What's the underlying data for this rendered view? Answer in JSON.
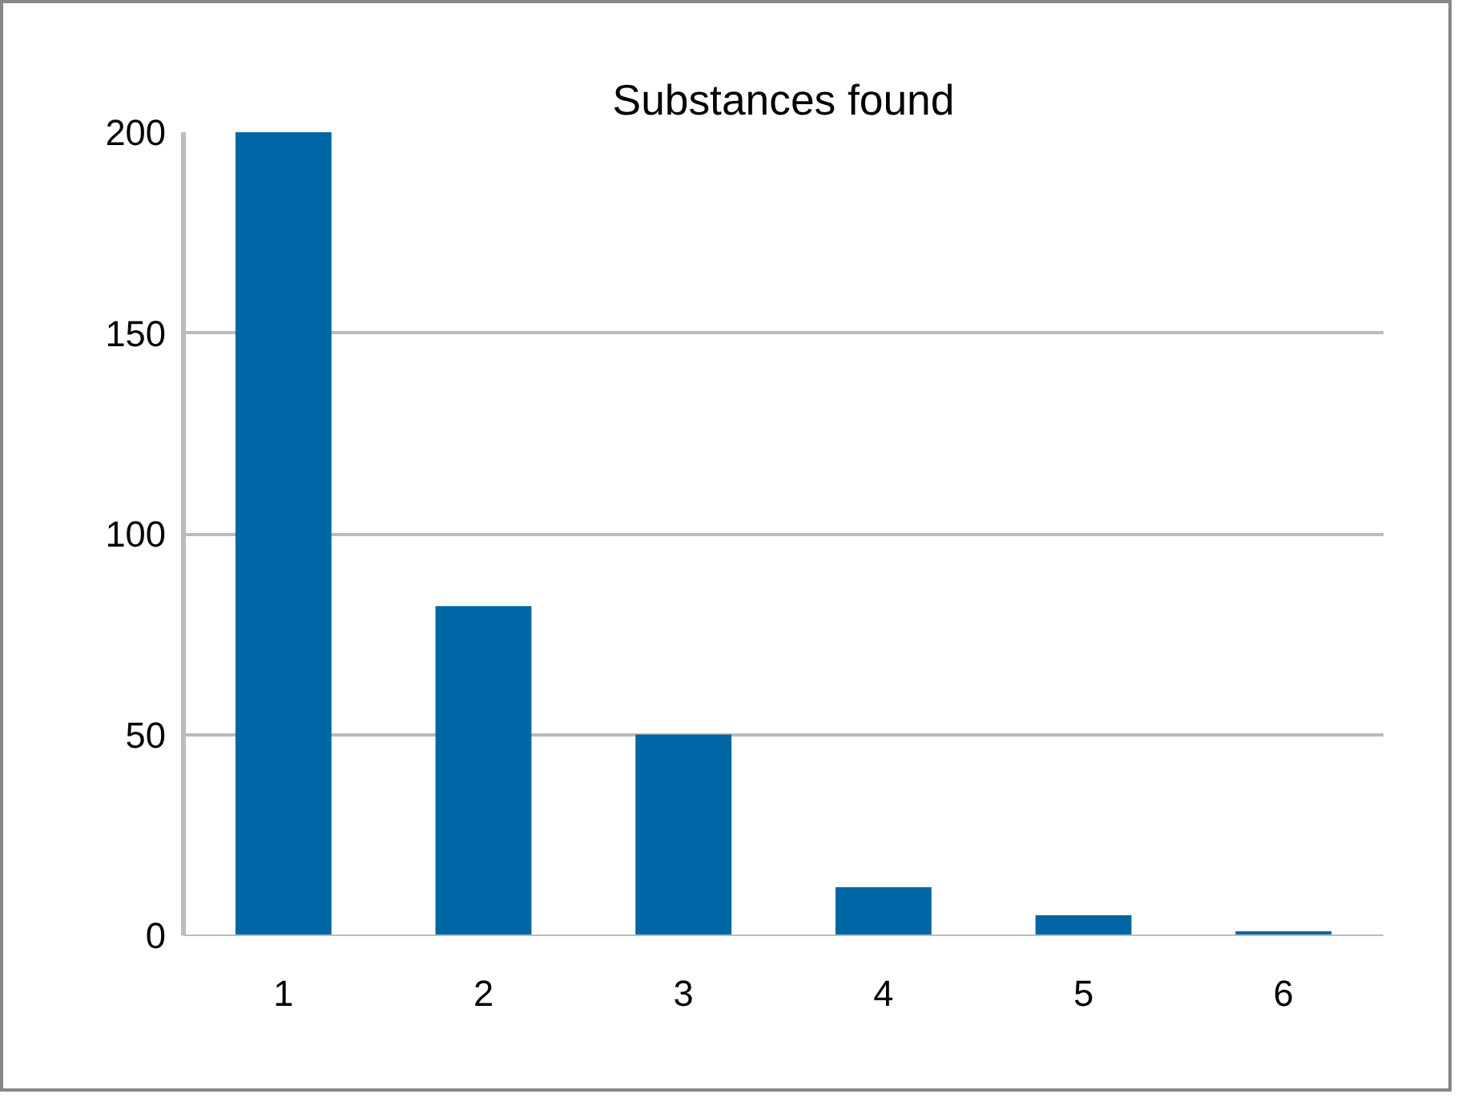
{
  "chart_data": {
    "type": "bar",
    "title": "Substances found",
    "categories": [
      "1",
      "2",
      "3",
      "4",
      "5",
      "6"
    ],
    "values": [
      200,
      82,
      50,
      12,
      5,
      1
    ],
    "color": "#0066a6",
    "ylim": [
      0,
      200
    ],
    "yticks": [
      0,
      50,
      100,
      150,
      200
    ],
    "grid": "y"
  }
}
